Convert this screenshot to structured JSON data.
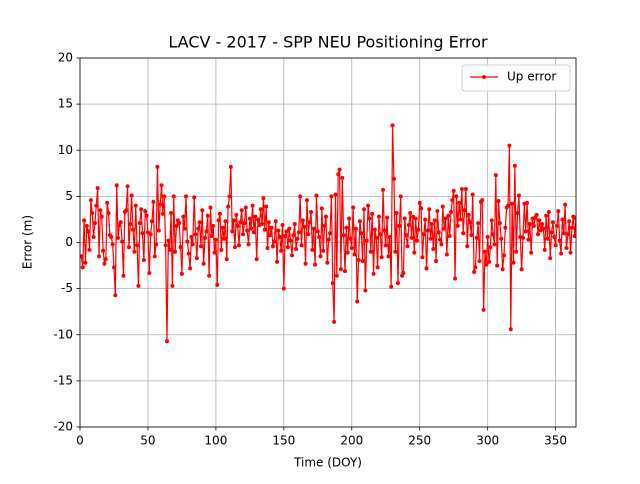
{
  "chart_data": {
    "type": "line",
    "title": "LACV - 2017 - SPP NEU Positioning Error",
    "xlabel": "Time (DOY)",
    "ylabel": "Error (m)",
    "xlim": [
      0,
      365
    ],
    "xticks": [
      0,
      50,
      100,
      150,
      200,
      250,
      300,
      350
    ],
    "ylim": [
      -20,
      20
    ],
    "yticks": [
      -20,
      -15,
      -10,
      -5,
      0,
      5,
      10,
      15,
      20
    ],
    "grid": true,
    "legend": "upper right",
    "x": [
      1,
      2,
      3,
      4,
      5,
      6,
      7,
      8,
      9,
      10,
      11,
      12,
      13,
      14,
      15,
      16,
      17,
      18,
      19,
      20,
      21,
      22,
      23,
      24,
      25,
      26,
      27,
      28,
      29,
      30,
      31,
      32,
      33,
      34,
      35,
      36,
      37,
      38,
      39,
      40,
      41,
      42,
      43,
      44,
      45,
      46,
      47,
      48,
      49,
      50,
      51,
      52,
      53,
      54,
      55,
      56,
      57,
      58,
      59,
      60,
      61,
      62,
      63,
      64,
      65,
      66,
      67,
      68,
      69,
      70,
      71,
      72,
      73,
      74,
      75,
      76,
      77,
      78,
      79,
      80,
      81,
      82,
      83,
      84,
      85,
      86,
      87,
      88,
      89,
      90,
      91,
      92,
      93,
      94,
      95,
      96,
      97,
      98,
      99,
      100,
      101,
      102,
      103,
      104,
      105,
      106,
      107,
      108,
      109,
      110,
      111,
      112,
      113,
      114,
      115,
      116,
      117,
      118,
      119,
      120,
      121,
      122,
      123,
      124,
      125,
      126,
      127,
      128,
      129,
      130,
      131,
      132,
      133,
      134,
      135,
      136,
      137,
      138,
      139,
      140,
      141,
      142,
      143,
      144,
      145,
      146,
      147,
      148,
      149,
      150,
      151,
      152,
      153,
      154,
      155,
      156,
      157,
      158,
      159,
      160,
      161,
      162,
      163,
      164,
      165,
      166,
      167,
      168,
      169,
      170,
      171,
      172,
      173,
      174,
      175,
      176,
      177,
      178,
      179,
      180,
      181,
      182,
      183,
      184,
      185,
      186,
      187,
      188,
      189,
      190,
      191,
      192,
      193,
      194,
      195,
      196,
      197,
      198,
      199,
      200,
      201,
      202,
      203,
      204,
      205,
      206,
      207,
      208,
      209,
      210,
      211,
      212,
      213,
      214,
      215,
      216,
      217,
      218,
      219,
      220,
      221,
      222,
      223,
      224,
      225,
      226,
      227,
      228,
      229,
      230,
      231,
      232,
      233,
      234,
      235,
      236,
      237,
      238,
      239,
      240,
      241,
      242,
      243,
      244,
      245,
      246,
      247,
      248,
      249,
      250,
      251,
      252,
      253,
      254,
      255,
      256,
      257,
      258,
      259,
      260,
      261,
      262,
      263,
      264,
      265,
      266,
      267,
      268,
      269,
      270,
      271,
      272,
      273,
      274,
      275,
      276,
      277,
      278,
      279,
      280,
      281,
      282,
      283,
      284,
      285,
      286,
      287,
      288,
      289,
      290,
      291,
      292,
      293,
      294,
      295,
      296,
      297,
      298,
      299,
      300,
      301,
      302,
      303,
      304,
      305,
      306,
      307,
      308,
      309,
      310,
      311,
      312,
      313,
      314,
      315,
      316,
      317,
      318,
      319,
      320,
      321,
      322,
      323,
      324,
      325,
      326,
      327,
      328,
      329,
      330,
      331,
      332,
      333,
      334,
      335,
      336,
      337,
      338,
      339,
      340,
      341,
      342,
      343,
      344,
      345,
      346,
      347,
      348,
      349,
      350,
      351,
      352,
      353,
      354,
      355,
      356,
      357,
      358,
      359,
      360,
      361,
      362,
      363,
      364,
      365
    ],
    "series": [
      {
        "name": "Up error",
        "color": "#ff0000",
        "values": [
          -1.5,
          -2.7,
          2.4,
          -2.2,
          1.8,
          1.2,
          -0.8,
          4.6,
          3.2,
          0.6,
          2.1,
          4.0,
          5.9,
          -1.5,
          3.5,
          2.8,
          -0.9,
          -2.3,
          -1.8,
          4.3,
          3.2,
          0.8,
          0.6,
          -0.2,
          -2.7,
          -5.7,
          6.2,
          0.5,
          1.9,
          2.2,
          0.1,
          -3.6,
          3.3,
          3.5,
          6.1,
          -0.5,
          2.0,
          5.1,
          1.4,
          -1.0,
          4.0,
          -0.3,
          -4.7,
          2.1,
          3.6,
          1.0,
          -1.9,
          3.4,
          2.9,
          1.1,
          -3.3,
          0.9,
          2.3,
          4.4,
          -1.5,
          -0.2,
          8.2,
          1.3,
          4.1,
          6.2,
          3.1,
          5.0,
          -0.3,
          -10.7,
          0.2,
          -0.8,
          3.2,
          -4.7,
          5.0,
          -1.0,
          1.8,
          2.4,
          2.1,
          -0.5,
          -3.4,
          2.8,
          1.5,
          5.0,
          0.1,
          -1.2,
          -2.8,
          0.6,
          -0.2,
          4.9,
          0.9,
          -1.7,
          1.5,
          2.2,
          -0.4,
          3.5,
          -2.3,
          0.5,
          1.2,
          2.9,
          -3.6,
          3.8,
          0.7,
          1.8,
          -1.1,
          0.3,
          -4.6,
          2.4,
          3.1,
          -0.8,
          1.6,
          0.4,
          2.3,
          -1.8,
          3.9,
          5.0,
          8.2,
          1.2,
          2.4,
          -0.5,
          3.0,
          1.8,
          -0.3,
          2.2,
          3.5,
          0.9,
          2.1,
          3.8,
          1.3,
          -0.2,
          2.6,
          1.5,
          4.0,
          1.1,
          2.8,
          -1.8,
          2.5,
          1.9,
          3.6,
          2.0,
          4.8,
          1.4,
          3.9,
          -0.6,
          2.2,
          0.8,
          1.6,
          -0.4,
          0.1,
          2.3,
          -2.1,
          1.3,
          0.6,
          -0.9,
          1.9,
          -5.0,
          0.7,
          1.2,
          -0.5,
          1.5,
          0.2,
          -1.4,
          0.8,
          2.0,
          -0.7,
          0.4,
          1.1,
          5.0,
          -0.3,
          2.4,
          1.7,
          -2.3,
          4.6,
          0.9,
          2.2,
          3.3,
          -0.8,
          1.5,
          -2.4,
          5.1,
          1.2,
          0.6,
          -1.5,
          3.7,
          -0.9,
          1.8,
          2.8,
          -2.2,
          0.3,
          1.0,
          5.0,
          -4.4,
          -8.6,
          5.2,
          -3.6,
          7.4,
          7.9,
          -2.9,
          7.0,
          0.8,
          -3.1,
          1.6,
          -1.1,
          2.6,
          0.4,
          -0.6,
          3.8,
          -1.3,
          1.5,
          -6.4,
          -1.9,
          2.3,
          1.0,
          -2.0,
          3.6,
          -5.2,
          0.2,
          4.0,
          2.6,
          -1.0,
          3.1,
          -3.4,
          1.4,
          0.5,
          -2.7,
          2.8,
          0.9,
          -1.6,
          5.7,
          1.3,
          -0.3,
          2.7,
          -1.5,
          0.6,
          -4.8,
          12.7,
          6.9,
          -1.0,
          3.2,
          -4.4,
          1.8,
          5.0,
          -3.6,
          -3.3,
          2.6,
          0.8,
          -0.4,
          1.9,
          3.2,
          0.5,
          2.8,
          -1.1,
          2.6,
          0.2,
          1.4,
          4.3,
          3.7,
          -1.6,
          0.9,
          2.5,
          -2.8,
          1.3,
          3.6,
          0.4,
          2.0,
          -0.7,
          2.4,
          -2.0,
          3.4,
          1.1,
          0.3,
          -0.2,
          3.9,
          1.5,
          2.6,
          -1.3,
          2.9,
          0.7,
          3.3,
          4.6,
          5.6,
          -3.9,
          5.0,
          1.8,
          4.3,
          2.5,
          5.8,
          1.0,
          3.5,
          5.8,
          -0.4,
          3.0,
          2.2,
          0.8,
          5.2,
          -3.2,
          -2.7,
          0.5,
          2.1,
          -2.0,
          4.4,
          4.6,
          -7.3,
          -1.0,
          -2.4,
          0.6,
          -2.1,
          -0.5,
          2.4,
          0.9,
          -0.2,
          7.3,
          -2.5,
          4.5,
          2.1,
          0.4,
          -2.9,
          -1.4,
          1.6,
          3.8,
          4.0,
          10.5,
          -9.4,
          4.2,
          -2.2,
          8.3,
          -1.0,
          3.2,
          5.1,
          0.6,
          -2.9,
          0.5,
          4.2,
          1.2,
          4.3,
          0.3,
          2.0,
          -1.1,
          2.6,
          1.8,
          2.7,
          3.0,
          0.9,
          2.4,
          1.3,
          2.0,
          1.5,
          -0.8,
          2.9,
          0.4,
          3.3,
          -1.7,
          1.1,
          2.2,
          0.6,
          -0.3,
          1.8,
          3.4,
          0.2,
          -1.2,
          2.5,
          1.0,
          4.1,
          -0.6,
          0.9,
          2.3,
          -1.1,
          1.6,
          2.8,
          0.7,
          2.6
        ]
      }
    ]
  }
}
